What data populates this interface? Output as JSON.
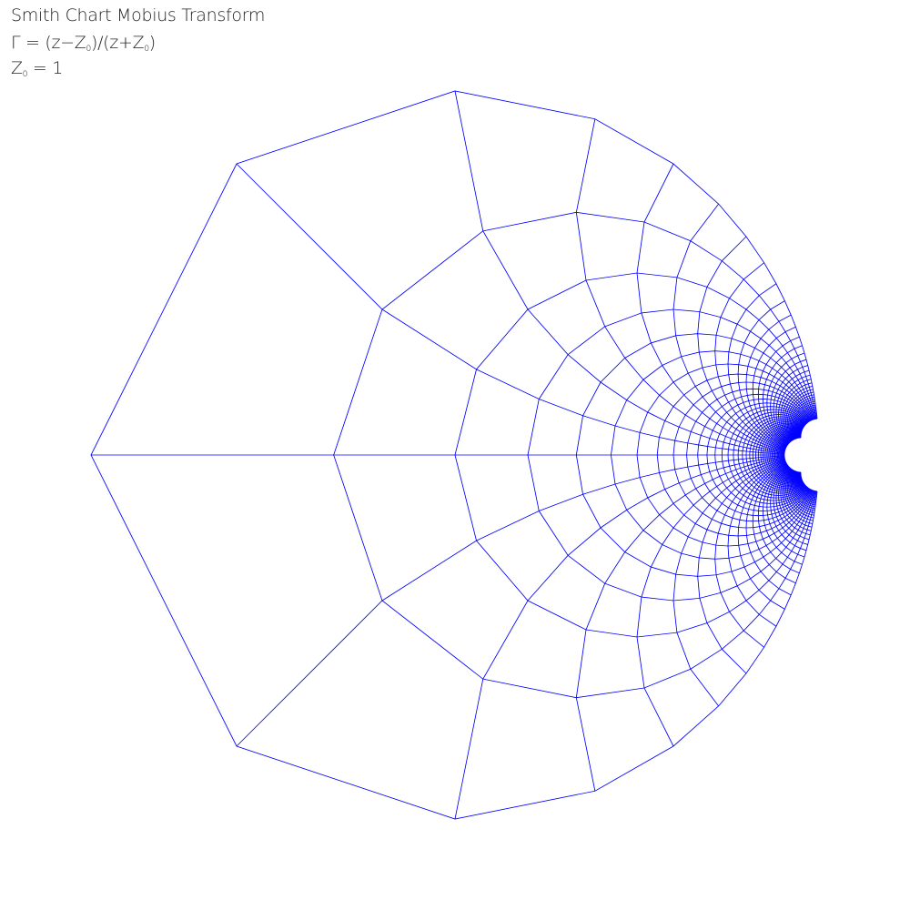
{
  "header": {
    "title": "Smith Chart Mobius Transform",
    "formula": {
      "gamma": "Γ",
      "lhs": " = (z−Z",
      "mid": ")/(z+Z",
      "end": ")",
      "sub": "0"
    },
    "impedance": {
      "sym": "Z",
      "sub": "0",
      "rest": " = 1"
    }
  },
  "transform": {
    "type": "mobius",
    "expression": "(z-Z0)/(z+Z0)",
    "z0": 1
  },
  "grid": {
    "color": "#0000ff",
    "resistance_values": [
      0,
      0.5,
      1,
      1.5,
      2,
      2.5,
      3,
      3.5,
      4,
      4.5,
      5,
      5.5,
      6,
      6.5,
      7,
      7.5,
      8,
      8.5,
      9,
      9.5,
      10,
      10.5,
      11,
      11.5,
      12,
      12.5,
      13,
      13.5,
      14,
      14.5,
      15,
      15.5,
      16,
      16.5,
      17,
      17.5,
      18,
      18.5,
      19,
      19.5,
      20
    ],
    "reactance_values": [
      -20,
      -19.5,
      -19,
      -18.5,
      -18,
      -17.5,
      -17,
      -16.5,
      -16,
      -15.5,
      -15,
      -14.5,
      -14,
      -13.5,
      -13,
      -12.5,
      -12,
      -11.5,
      -11,
      -10.5,
      -10,
      -9.5,
      -9,
      -8.5,
      -8,
      -7.5,
      -7,
      -6.5,
      -6,
      -5.5,
      -5,
      -4.5,
      -4,
      -3.5,
      -3,
      -2.5,
      -2,
      -1.5,
      -1,
      -0.5,
      0,
      0.5,
      1,
      1.5,
      2,
      2.5,
      3,
      3.5,
      4,
      4.5,
      5,
      5.5,
      6,
      6.5,
      7,
      7.5,
      8,
      8.5,
      9,
      9.5,
      10,
      10.5,
      11,
      11.5,
      12,
      12.5,
      13,
      13.5,
      14,
      14.5,
      15,
      15.5,
      16,
      16.5,
      17,
      17.5,
      18,
      18.5,
      19,
      19.5,
      20
    ]
  }
}
